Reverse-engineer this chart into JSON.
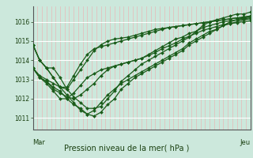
{
  "title": "Pression niveau de la mer( hPa )",
  "xlabel_left": "Mar",
  "xlabel_right": "Jeu",
  "ylabel_ticks": [
    1011,
    1012,
    1013,
    1014,
    1015,
    1016
  ],
  "ylim": [
    1010.4,
    1016.8
  ],
  "xlim": [
    0,
    47
  ],
  "bg_color": "#cce8dc",
  "grid_white": "#ffffff",
  "grid_pink": "#e8b8b8",
  "line_color": "#1a5c1a",
  "markersize": 2.0,
  "linewidth": 0.9,
  "n_vgrid": 48,
  "series": [
    [
      1014.8,
      1014.0,
      1013.6,
      1013.6,
      1013.1,
      1012.5,
      1012.1,
      1011.8,
      1011.5,
      1011.5,
      1011.6,
      1012.0,
      1012.4,
      1012.9,
      1013.2,
      1013.5,
      1013.8,
      1014.0,
      1014.2,
      1014.4,
      1014.6,
      1014.8,
      1015.0,
      1015.2,
      1015.5,
      1015.8,
      1016.0,
      1016.1,
      1016.2,
      1016.3,
      1016.4,
      1016.4,
      1016.5
    ],
    [
      1013.6,
      1013.2,
      1013.0,
      1012.8,
      1012.6,
      1012.2,
      1011.8,
      1011.4,
      1011.2,
      1011.1,
      1011.3,
      1011.7,
      1012.0,
      1012.5,
      1012.8,
      1013.1,
      1013.3,
      1013.5,
      1013.7,
      1013.9,
      1014.1,
      1014.3,
      1014.5,
      1014.8,
      1015.0,
      1015.2,
      1015.4,
      1015.6,
      1015.8,
      1016.0,
      1016.1,
      1016.2,
      1016.3
    ],
    [
      1013.6,
      1013.1,
      1012.9,
      1012.6,
      1012.4,
      1012.0,
      1011.7,
      1011.5,
      1011.2,
      1011.4,
      1011.8,
      1012.2,
      1012.5,
      1012.8,
      1013.0,
      1013.2,
      1013.4,
      1013.6,
      1013.8,
      1014.0,
      1014.2,
      1014.4,
      1014.6,
      1014.9,
      1015.1,
      1015.3,
      1015.5,
      1015.6,
      1015.8,
      1015.9,
      1016.0,
      1016.1,
      1016.15
    ],
    [
      1013.6,
      1013.1,
      1012.9,
      1012.5,
      1012.3,
      1012.1,
      1012.0,
      1012.2,
      1012.5,
      1012.8,
      1013.2,
      1013.5,
      1013.7,
      1013.8,
      1013.9,
      1014.0,
      1014.1,
      1014.3,
      1014.5,
      1014.7,
      1014.9,
      1015.1,
      1015.2,
      1015.4,
      1015.5,
      1015.7,
      1015.8,
      1015.9,
      1016.0,
      1016.05,
      1016.1,
      1016.15,
      1016.2
    ],
    [
      1013.6,
      1013.1,
      1012.8,
      1012.4,
      1012.0,
      1012.0,
      1012.3,
      1012.7,
      1013.1,
      1013.3,
      1013.5,
      1013.6,
      1013.7,
      1013.8,
      1013.9,
      1014.0,
      1014.1,
      1014.25,
      1014.4,
      1014.6,
      1014.75,
      1014.9,
      1015.1,
      1015.25,
      1015.4,
      1015.55,
      1015.65,
      1015.75,
      1015.85,
      1015.9,
      1015.95,
      1016.0,
      1016.05
    ],
    [
      1014.8,
      1014.0,
      1013.6,
      1013.1,
      1012.6,
      1012.5,
      1013.0,
      1013.5,
      1014.0,
      1014.5,
      1014.8,
      1015.0,
      1015.1,
      1015.15,
      1015.2,
      1015.3,
      1015.4,
      1015.5,
      1015.6,
      1015.65,
      1015.7,
      1015.75,
      1015.8,
      1015.85,
      1015.9,
      1015.95,
      1016.0,
      1016.05,
      1016.1,
      1016.15,
      1016.2,
      1016.2,
      1016.25
    ],
    [
      1014.8,
      1014.0,
      1013.6,
      1013.1,
      1012.6,
      1012.6,
      1013.2,
      1013.8,
      1014.3,
      1014.6,
      1014.7,
      1014.8,
      1014.9,
      1015.0,
      1015.1,
      1015.2,
      1015.3,
      1015.4,
      1015.5,
      1015.6,
      1015.7,
      1015.75,
      1015.8,
      1015.85,
      1015.9,
      1015.95,
      1016.0,
      1016.05,
      1016.1,
      1016.15,
      1016.2,
      1016.25,
      1016.3
    ]
  ]
}
